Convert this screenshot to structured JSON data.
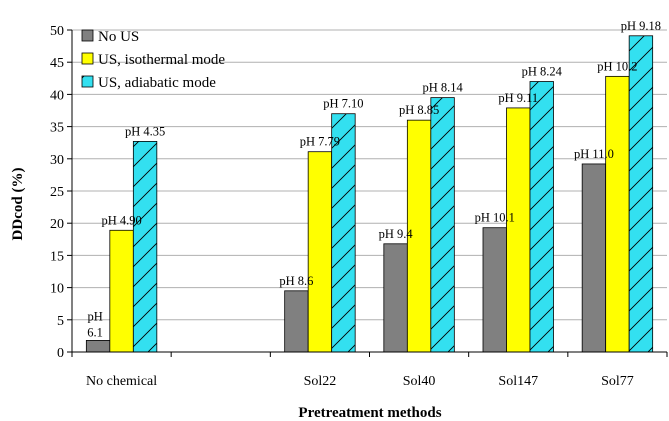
{
  "chart_data": {
    "type": "bar",
    "categories": [
      "No chemical",
      "",
      "Sol22",
      "Sol40",
      "Sol147",
      "Sol77"
    ],
    "xlabel": "Pretreatment methods",
    "ylabel": "DDcod (%)",
    "ylim": [
      0,
      50
    ],
    "yticks": [
      0,
      5,
      10,
      15,
      20,
      25,
      30,
      35,
      40,
      45,
      50
    ],
    "grid": true,
    "legend_position": "top-left",
    "series": [
      {
        "name": "No US",
        "color": "#808080",
        "pattern": "solid",
        "values": [
          1.8,
          null,
          9.5,
          16.8,
          19.3,
          29.2
        ],
        "labels": [
          "pH 6.1",
          "",
          "pH 8.6",
          "pH 9.4",
          "pH 10.1",
          "pH 11.0"
        ]
      },
      {
        "name": "US, isothermal mode",
        "color": "#ffff00",
        "pattern": "solid",
        "values": [
          18.9,
          null,
          31.1,
          36.0,
          37.9,
          42.8
        ],
        "labels": [
          "pH 4.90",
          "",
          "pH 7.79",
          "pH 8.85",
          "pH 9.11",
          "pH 10.2"
        ]
      },
      {
        "name": "US, adiabatic mode",
        "color": "#33e0f0",
        "pattern": "diagonal-hatch",
        "values": [
          32.7,
          null,
          37.0,
          39.5,
          42.0,
          49.1
        ],
        "labels": [
          "pH 4.35",
          "",
          "pH 7.10",
          "pH 8.14",
          "pH 8.24",
          "pH 9.18"
        ]
      }
    ]
  }
}
